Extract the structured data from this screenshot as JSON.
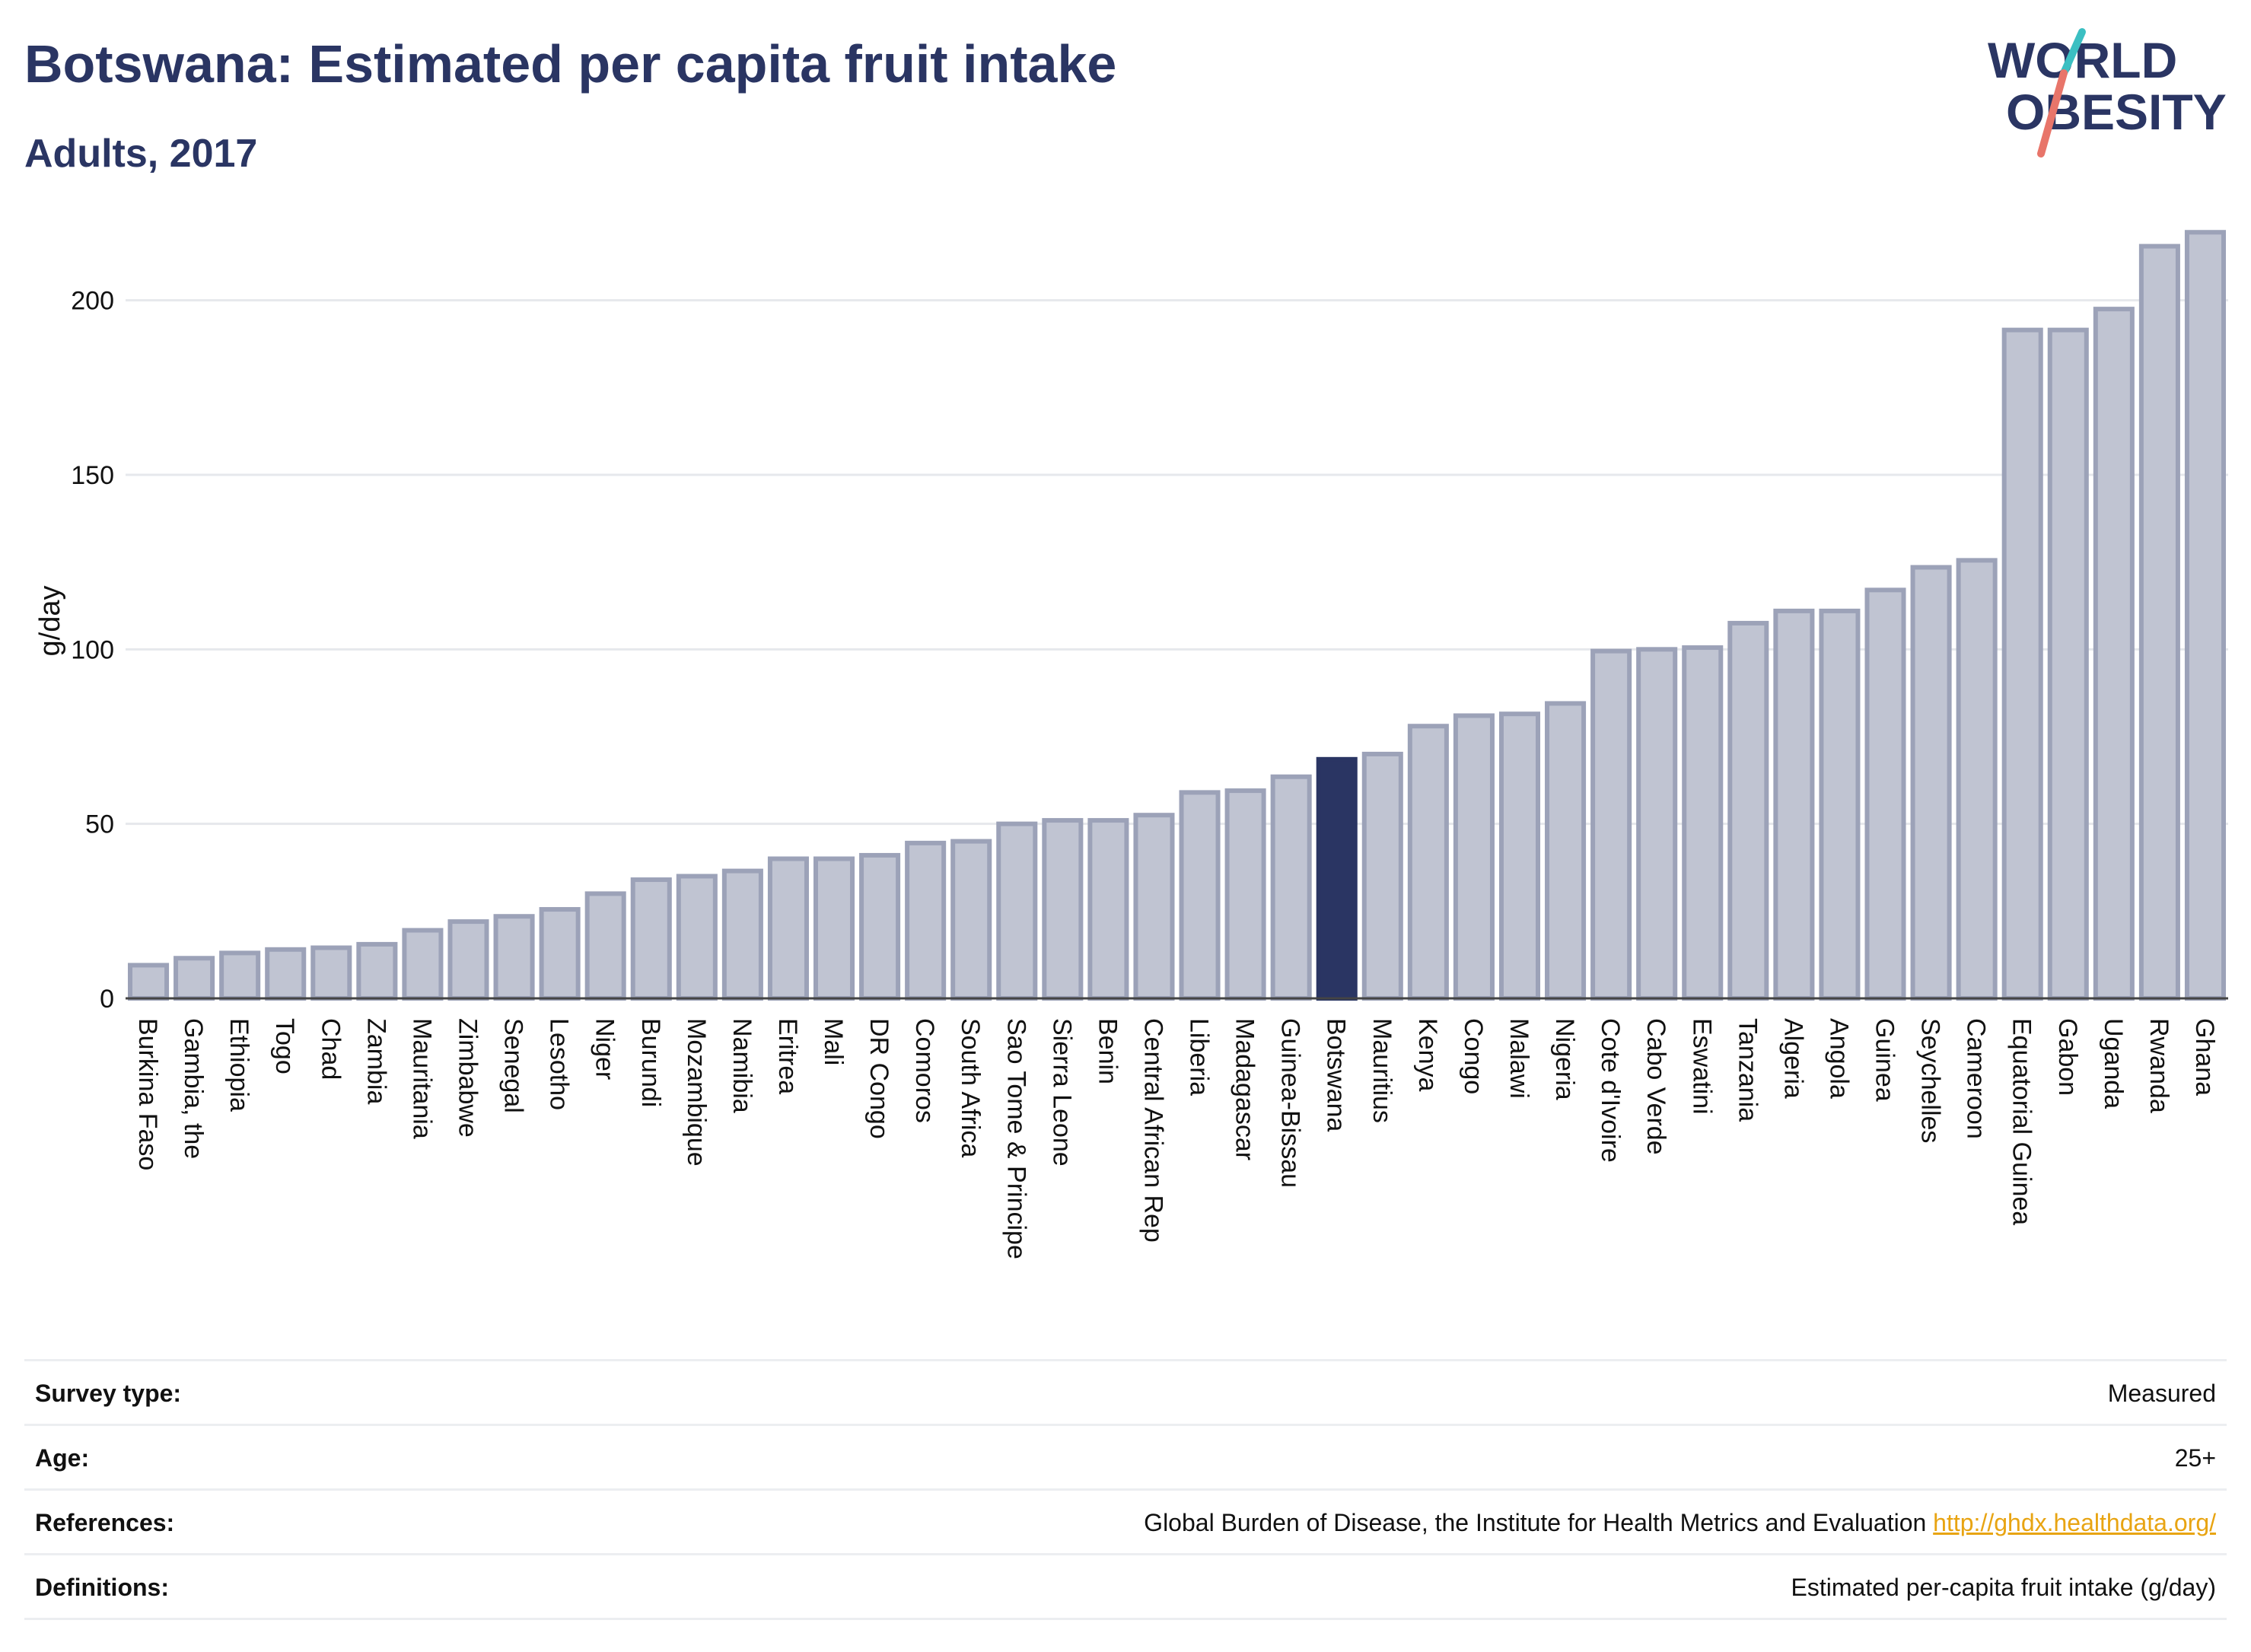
{
  "header": {
    "title": "Botswana: Estimated per capita fruit intake",
    "subtitle": "Adults, 2017"
  },
  "logo": {
    "line1": "WORLD",
    "line2": "OBESITY"
  },
  "colors": {
    "bar_fill": "#c0c4d2",
    "bar_stroke": "#9ca2b8",
    "highlight": "#2a3563",
    "title": "#2a3563",
    "grid": "#e6e8ec",
    "link": "#e8a412",
    "logo_teal": "#3bbfc2",
    "logo_coral": "#e8756a"
  },
  "chart_data": {
    "type": "bar",
    "ylabel": "g/day",
    "ylim": [
      0,
      225
    ],
    "yticks": [
      0,
      50,
      100,
      150,
      200
    ],
    "grid": true,
    "highlight": "Botswana",
    "categories": [
      "Burkina Faso",
      "Gambia, the",
      "Ethiopia",
      "Togo",
      "Chad",
      "Zambia",
      "Mauritania",
      "Zimbabwe",
      "Senegal",
      "Lesotho",
      "Niger",
      "Burundi",
      "Mozambique",
      "Namibia",
      "Eritrea",
      "Mali",
      "DR Congo",
      "Comoros",
      "South Africa",
      "Sao Tome & Principe",
      "Sierra Leone",
      "Benin",
      "Central African Rep",
      "Liberia",
      "Madagascar",
      "Guinea-Bissau",
      "Botswana",
      "Mauritius",
      "Kenya",
      "Congo",
      "Malawi",
      "Nigeria",
      "Cote d'Ivoire",
      "Cabo Verde",
      "Eswatini",
      "Tanzania",
      "Algeria",
      "Angola",
      "Guinea",
      "Seychelles",
      "Cameroon",
      "Equatorial Guinea",
      "Gabon",
      "Uganda",
      "Rwanda",
      "Ghana"
    ],
    "values": [
      9.5,
      11.5,
      13,
      14,
      14.5,
      15.5,
      19.5,
      22,
      23.5,
      25.5,
      30,
      34,
      35,
      36.5,
      40,
      40,
      41,
      44.5,
      45,
      50,
      51,
      51,
      52.5,
      59,
      59.5,
      63.5,
      68.5,
      70,
      78,
      81,
      81.5,
      84.5,
      99.5,
      100,
      100.5,
      107.5,
      111,
      111,
      117,
      123.5,
      125.5,
      191.5,
      191.5,
      197.5,
      215.5,
      219.5
    ]
  },
  "info": {
    "rows": [
      {
        "label": "Survey type:",
        "value": "Measured"
      },
      {
        "label": "Age:",
        "value": "25+"
      },
      {
        "label": "References:",
        "value": "Global Burden of Disease, the Institute for Health Metrics and Evaluation",
        "link": "http://ghdx.healthdata.org/"
      },
      {
        "label": "Definitions:",
        "value": "Estimated per-capita fruit intake (g/day)"
      }
    ]
  }
}
